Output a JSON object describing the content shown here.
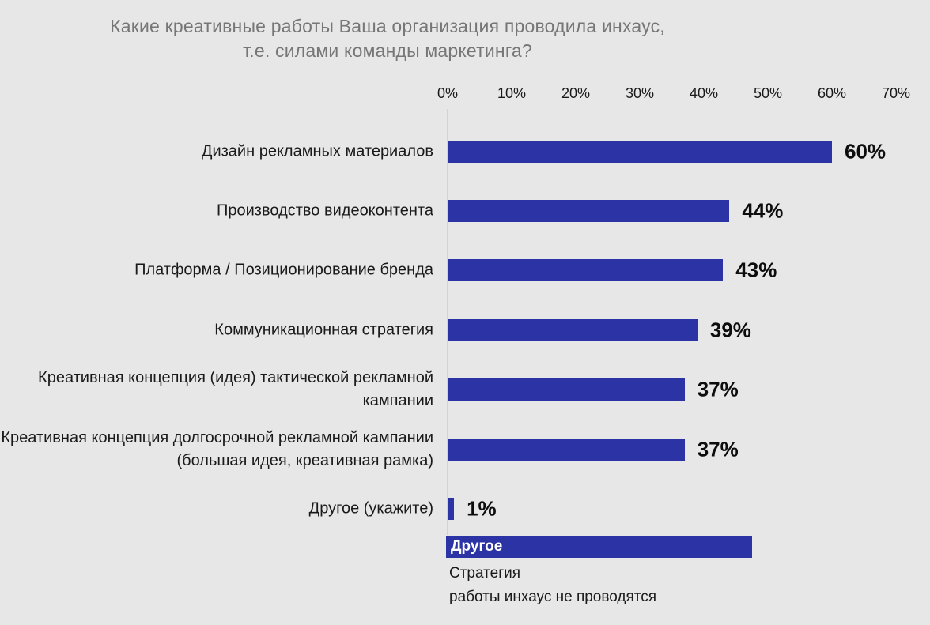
{
  "slide": {
    "title_line1": "Какие креативные работы Ваша организация проводила инхаус,",
    "title_line2": "т.е. силами команды маркетинга?"
  },
  "colors": {
    "bar": "#2b33a5",
    "background": "#e7e7e7",
    "title_text": "#767676"
  },
  "chart_data": {
    "type": "bar",
    "orientation": "horizontal",
    "title": "Какие креативные работы Ваша организация проводила инхаус, т.е. силами команды маркетинга?",
    "categories": [
      "Дизайн рекламных материалов",
      "Производство видеоконтента",
      "Платформа / Позиционирование бренда",
      "Коммуникационная стратегия",
      "Креативная концепция (идея) тактической рекламной кампании",
      "Креативная концепция долгосрочной рекламной кампании (большая идея, креативная рамка)",
      "Другое (укажите)"
    ],
    "values": [
      60,
      44,
      43,
      39,
      37,
      37,
      1
    ],
    "value_labels": [
      "60%",
      "44%",
      "43%",
      "39%",
      "37%",
      "37%",
      "1%"
    ],
    "xlabel": "",
    "ylabel": "",
    "axis": {
      "min": 0,
      "max": 70,
      "ticks": [
        "0%",
        "10%",
        "20%",
        "30%",
        "40%",
        "50%",
        "60%",
        "70%"
      ],
      "position": "top",
      "grid": false
    },
    "legend": null,
    "annotation": {
      "header": "Другое",
      "items": [
        "Стратегия",
        "работы инхаус не проводятся"
      ]
    }
  }
}
